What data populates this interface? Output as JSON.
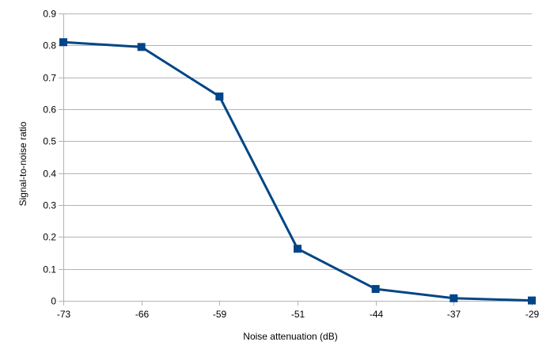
{
  "chart_data": {
    "type": "line",
    "title": "",
    "xlabel": "Noise attenuation (dB)",
    "ylabel": "Signal-to-noise ratio",
    "categories": [
      "-73",
      "-66",
      "-59",
      "-51",
      "-44",
      "-37",
      "-29"
    ],
    "y_ticks": [
      "0",
      "0.1",
      "0.2",
      "0.3",
      "0.4",
      "0.5",
      "0.6",
      "0.7",
      "0.8",
      "0.9"
    ],
    "ylim": [
      0,
      0.9
    ],
    "grid": "horizontal",
    "legend": "none",
    "series": [
      {
        "values": [
          0.81,
          0.795,
          0.64,
          0.163,
          0.037,
          0.008,
          0.001
        ]
      }
    ],
    "colors": {
      "series": "#004586",
      "grid": "#b3b3b3",
      "axis": "#b3b3b3"
    }
  }
}
